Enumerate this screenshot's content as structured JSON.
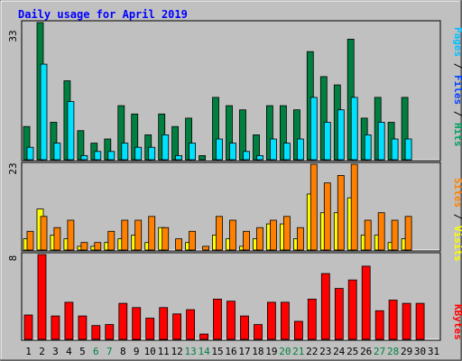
{
  "chart_data": [
    {
      "type": "bar",
      "title": "Daily usage for April 2019",
      "panel": "pages-files-hits",
      "categories": [
        "1",
        "2",
        "3",
        "4",
        "5",
        "6",
        "7",
        "8",
        "9",
        "10",
        "11",
        "12",
        "13",
        "14",
        "15",
        "16",
        "17",
        "18",
        "19",
        "20",
        "21",
        "22",
        "23",
        "24",
        "25",
        "26",
        "27",
        "28",
        "29",
        "30",
        "31"
      ],
      "ymax_label": "33",
      "ylim": [
        0,
        33
      ],
      "series": [
        {
          "name": "Hits",
          "color": "#008040",
          "values": [
            8,
            33,
            9,
            19,
            7,
            4,
            5,
            13,
            11,
            6,
            11,
            8,
            10,
            1,
            15,
            13,
            12,
            6,
            13,
            13,
            12,
            26,
            20,
            18,
            29,
            10,
            15,
            9,
            15,
            0,
            0
          ]
        },
        {
          "name": "Files",
          "color": "#00e0ff",
          "values": [
            3,
            23,
            4,
            14,
            1,
            2,
            2,
            4,
            3,
            3,
            6,
            1,
            4,
            0,
            5,
            4,
            2,
            1,
            5,
            4,
            5,
            15,
            9,
            12,
            15,
            6,
            9,
            5,
            5,
            0,
            0
          ]
        },
        {
          "name": "Pages",
          "color": "#00c0ff",
          "values": [
            0,
            0,
            0,
            0,
            0,
            0,
            0,
            0,
            0,
            0,
            0,
            0,
            0,
            0,
            0,
            0,
            0,
            0,
            0,
            0,
            0,
            0,
            0,
            0,
            0,
            0,
            0,
            0,
            0,
            0,
            0
          ]
        }
      ]
    },
    {
      "type": "bar",
      "panel": "visits-sites",
      "ymax_label": "23",
      "ylim": [
        0,
        23
      ],
      "series": [
        {
          "name": "Visits",
          "color": "#ffff00",
          "values": [
            3,
            11,
            4,
            3,
            1,
            1,
            2,
            3,
            4,
            2,
            6,
            0,
            2,
            0,
            4,
            3,
            1,
            3,
            7,
            7,
            3,
            15,
            10,
            10,
            14,
            4,
            4,
            2,
            3,
            0,
            0
          ]
        },
        {
          "name": "Sites",
          "color": "#ff8000",
          "values": [
            5,
            9,
            6,
            8,
            2,
            2,
            5,
            8,
            8,
            9,
            6,
            3,
            5,
            1,
            9,
            8,
            5,
            6,
            8,
            9,
            6,
            23,
            18,
            20,
            23,
            8,
            10,
            8,
            9,
            0,
            0
          ]
        }
      ]
    },
    {
      "type": "bar",
      "panel": "kbytes",
      "ymax_label": "8",
      "ylim": [
        0,
        8
      ],
      "series": [
        {
          "name": "KBytes",
          "color": "#ff0000",
          "values": [
            2.3,
            8.0,
            2.2,
            3.5,
            2.2,
            1.3,
            1.4,
            3.4,
            3.0,
            2.0,
            3.0,
            2.4,
            2.8,
            0.5,
            3.8,
            3.6,
            2.2,
            1.4,
            3.5,
            3.5,
            1.7,
            3.8,
            6.2,
            4.8,
            5.6,
            6.9,
            2.7,
            3.7,
            3.4,
            3.4,
            0
          ]
        }
      ]
    }
  ],
  "legends": {
    "top": [
      {
        "text": "Pages",
        "color": "#00c0ff"
      },
      {
        "text": " / ",
        "color": "#000000"
      },
      {
        "text": "Files",
        "color": "#0040ff"
      },
      {
        "text": " / ",
        "color": "#000000"
      },
      {
        "text": "Hits",
        "color": "#00a060"
      }
    ],
    "mid": [
      {
        "text": "Sites",
        "color": "#ff8000"
      },
      {
        "text": " / ",
        "color": "#000000"
      },
      {
        "text": "Visits",
        "color": "#ffff00"
      }
    ],
    "bot": [
      {
        "text": "KBytes",
        "color": "#ff0000"
      }
    ]
  },
  "weekend_days": [
    "6",
    "7",
    "13",
    "14",
    "20",
    "21",
    "27",
    "28"
  ],
  "colors": {
    "title": "#0000ff",
    "panel_bg": "#c0c0c0",
    "day_label": "#000000",
    "weekend_label": "#008040",
    "outline": "#000000"
  }
}
